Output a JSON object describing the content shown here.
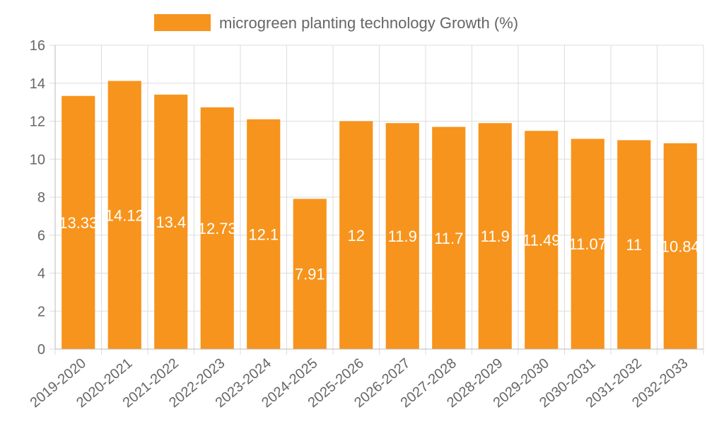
{
  "chart_data": {
    "type": "bar",
    "title": "",
    "xlabel": "",
    "ylabel": "",
    "categories": [
      "2019-2020",
      "2020-2021",
      "2021-2022",
      "2022-2023",
      "2023-2024",
      "2024-2025",
      "2025-2026",
      "2026-2027",
      "2027-2028",
      "2028-2029",
      "2029-2030",
      "2030-2031",
      "2031-2032",
      "2032-2033"
    ],
    "series": [
      {
        "name": "microgreen planting technology Growth (%)",
        "values": [
          13.33,
          14.12,
          13.4,
          12.73,
          12.1,
          7.91,
          12,
          11.9,
          11.7,
          11.9,
          11.49,
          11.07,
          11,
          10.84
        ],
        "color": "#f7941d"
      }
    ],
    "ylim": [
      0,
      16
    ],
    "yticks": [
      0,
      2,
      4,
      6,
      8,
      10,
      12,
      14,
      16
    ],
    "grid": true,
    "legend_position": "top-center",
    "data_labels": true
  }
}
